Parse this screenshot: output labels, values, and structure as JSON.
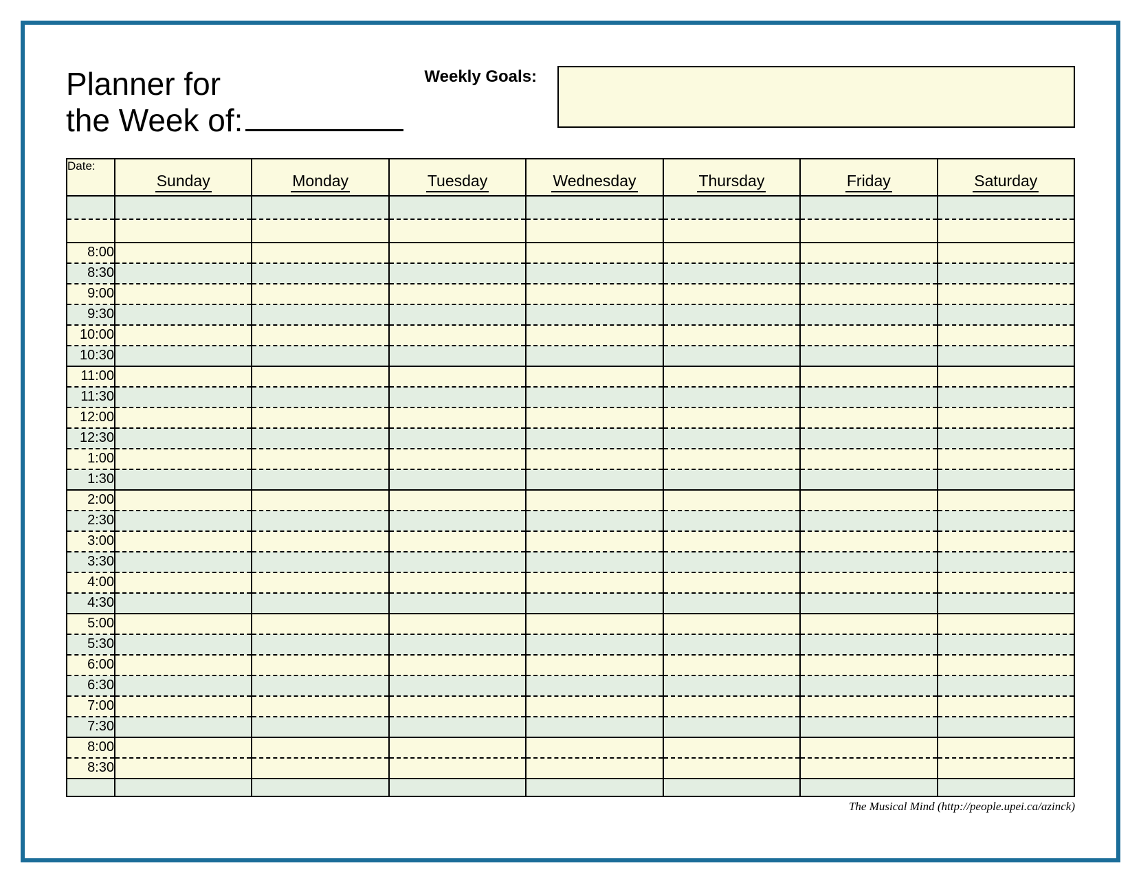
{
  "header": {
    "title_line1": "Planner for",
    "title_line2": "the Week of:",
    "goals_label": "Weekly Goals:"
  },
  "table": {
    "date_label": "Date:",
    "days": [
      "Sunday",
      "Monday",
      "Tuesday",
      "Wednesday",
      "Thursday",
      "Friday",
      "Saturday"
    ],
    "time_slots": [
      {
        "label": "",
        "shade": "green"
      },
      {
        "label": "",
        "shade": "cream"
      },
      {
        "label": "8:00",
        "shade": "cream"
      },
      {
        "label": "8:30",
        "shade": "green"
      },
      {
        "label": "9:00",
        "shade": "cream"
      },
      {
        "label": "9:30",
        "shade": "green"
      },
      {
        "label": "10:00",
        "shade": "cream"
      },
      {
        "label": "10:30",
        "shade": "green"
      },
      {
        "label": "11:00",
        "shade": "cream"
      },
      {
        "label": "11:30",
        "shade": "green"
      },
      {
        "label": "12:00",
        "shade": "cream"
      },
      {
        "label": "12:30",
        "shade": "green"
      },
      {
        "label": "1:00",
        "shade": "cream"
      },
      {
        "label": "1:30",
        "shade": "green"
      },
      {
        "label": "2:00",
        "shade": "cream"
      },
      {
        "label": "2:30",
        "shade": "green"
      },
      {
        "label": "3:00",
        "shade": "cream"
      },
      {
        "label": "3:30",
        "shade": "green"
      },
      {
        "label": "4:00",
        "shade": "cream"
      },
      {
        "label": "4:30",
        "shade": "green"
      },
      {
        "label": "5:00",
        "shade": "cream"
      },
      {
        "label": "5:30",
        "shade": "green"
      },
      {
        "label": "6:00",
        "shade": "cream"
      },
      {
        "label": "6:30",
        "shade": "green"
      },
      {
        "label": "7:00",
        "shade": "cream"
      },
      {
        "label": "7:30",
        "shade": "green"
      },
      {
        "label": "8:00",
        "shade": "cream"
      },
      {
        "label": "8:30",
        "shade": "cream"
      }
    ],
    "block_size": 6,
    "footer_shade": "green"
  },
  "colors": {
    "frame_border": "#1b6d99",
    "cream": "#fbfadf",
    "green": "#e3eee2",
    "line": "#000000"
  },
  "attribution": "The Musical Mind   (http://people.upei.ca/azinck)"
}
